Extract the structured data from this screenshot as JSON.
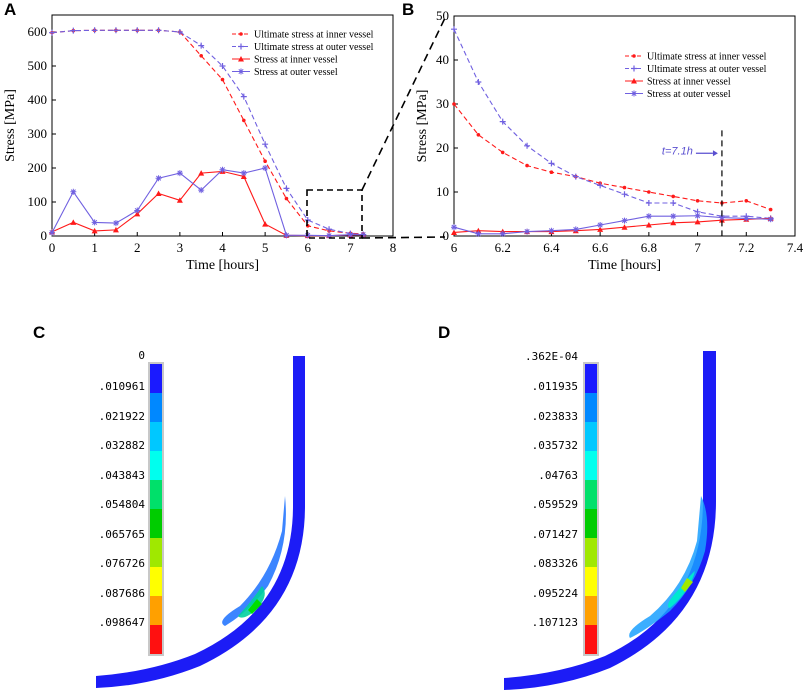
{
  "panels": {
    "a": "A",
    "b": "B",
    "c": "C",
    "d": "D"
  },
  "series_names": [
    "Ultimate stress at inner vessel",
    "Ultimate stress at outer vessel",
    "Stress at inner vessel",
    "Stress at outer vessel"
  ],
  "colors": {
    "inner": "#ff1a1a",
    "outer": "#7060e0",
    "dashed_box": "#000000"
  },
  "chart_data": [
    {
      "type": "line",
      "panel": "A",
      "xlabel": "Time [hours]",
      "ylabel": "Stress [MPa]",
      "xlim": [
        0,
        8
      ],
      "ylim": [
        0,
        650
      ],
      "xticks": [
        0,
        1,
        2,
        3,
        4,
        5,
        6,
        7,
        8
      ],
      "yticks": [
        0,
        100,
        200,
        300,
        400,
        500,
        600
      ],
      "legend": "top-right",
      "series": [
        {
          "name": "Ultimate stress at inner vessel",
          "color": "#ff1a1a",
          "style": "dashed",
          "marker": "dot",
          "x": [
            0,
            0.5,
            1,
            1.5,
            2,
            2.5,
            3,
            3.5,
            4,
            4.5,
            5,
            5.5,
            6,
            6.5,
            7,
            7.3
          ],
          "y": [
            598,
            604,
            605,
            605,
            605,
            605,
            600,
            530,
            460,
            340,
            220,
            110,
            30,
            15,
            8,
            6
          ]
        },
        {
          "name": "Ultimate stress at outer vessel",
          "color": "#7060e0",
          "style": "dashed",
          "marker": "plus",
          "x": [
            0,
            0.5,
            1,
            1.5,
            2,
            2.5,
            3,
            3.5,
            4,
            4.5,
            5,
            5.5,
            6,
            6.5,
            7,
            7.3
          ],
          "y": [
            598,
            604,
            605,
            605,
            605,
            605,
            600,
            560,
            500,
            410,
            270,
            140,
            47,
            20,
            7,
            4
          ]
        },
        {
          "name": "Stress at inner vessel",
          "color": "#ff1a1a",
          "style": "solid",
          "marker": "triangle",
          "x": [
            0,
            0.5,
            1,
            1.5,
            2,
            2.5,
            3,
            3.5,
            4,
            4.5,
            5,
            5.5,
            6,
            6.5,
            7,
            7.3
          ],
          "y": [
            12,
            40,
            15,
            18,
            65,
            125,
            105,
            185,
            190,
            175,
            35,
            2,
            1,
            1,
            3,
            4
          ]
        },
        {
          "name": "Stress at outer vessel",
          "color": "#7060e0",
          "style": "solid",
          "marker": "star",
          "x": [
            0,
            0.5,
            1,
            1.5,
            2,
            2.5,
            3,
            3.5,
            4,
            4.5,
            5,
            5.5,
            6,
            6.5,
            7,
            7.3
          ],
          "y": [
            10,
            130,
            40,
            38,
            75,
            170,
            185,
            135,
            195,
            185,
            200,
            2,
            2,
            1,
            4,
            4
          ]
        }
      ]
    },
    {
      "type": "line",
      "panel": "B",
      "xlabel": "Time [hours]",
      "ylabel": "Stress [MPa]",
      "xlim": [
        6,
        7.4
      ],
      "ylim": [
        0,
        50
      ],
      "xticks": [
        6,
        6.2,
        6.4,
        6.6,
        6.8,
        7,
        7.2,
        7.4
      ],
      "yticks": [
        0,
        10,
        20,
        30,
        40,
        50
      ],
      "legend": "top-right",
      "annotation": "t=7.1h",
      "annotation_x": 7.1,
      "series": [
        {
          "name": "Ultimate stress at inner vessel",
          "color": "#ff1a1a",
          "style": "dashed",
          "marker": "dot",
          "x": [
            6,
            6.1,
            6.2,
            6.3,
            6.4,
            6.5,
            6.6,
            6.7,
            6.8,
            6.9,
            7,
            7.1,
            7.2,
            7.3
          ],
          "y": [
            30,
            23,
            19,
            16,
            14.5,
            13.5,
            12,
            11,
            10,
            9,
            8,
            7.5,
            8,
            6
          ]
        },
        {
          "name": "Ultimate stress at outer vessel",
          "color": "#7060e0",
          "style": "dashed",
          "marker": "plus",
          "x": [
            6,
            6.1,
            6.2,
            6.3,
            6.4,
            6.5,
            6.6,
            6.7,
            6.8,
            6.9,
            7,
            7.1,
            7.2,
            7.3
          ],
          "y": [
            47,
            35,
            26,
            20.5,
            16.5,
            13.5,
            11.5,
            9.5,
            7.5,
            7.5,
            5.5,
            4.5,
            4.5,
            4
          ]
        },
        {
          "name": "Stress at inner vessel",
          "color": "#ff1a1a",
          "style": "solid",
          "marker": "triangle",
          "x": [
            6,
            6.1,
            6.2,
            6.3,
            6.4,
            6.5,
            6.6,
            6.7,
            6.8,
            6.9,
            7,
            7.1,
            7.2,
            7.3
          ],
          "y": [
            0.8,
            1.2,
            1,
            1,
            1,
            1.2,
            1.5,
            2,
            2.5,
            3,
            3.2,
            3.6,
            3.8,
            4
          ]
        },
        {
          "name": "Stress at outer vessel",
          "color": "#7060e0",
          "style": "solid",
          "marker": "star",
          "x": [
            6,
            6.1,
            6.2,
            6.3,
            6.4,
            6.5,
            6.6,
            6.7,
            6.8,
            6.9,
            7,
            7.1,
            7.2,
            7.3
          ],
          "y": [
            2,
            0.5,
            0.5,
            1,
            1.2,
            1.5,
            2.5,
            3.5,
            4.5,
            4.5,
            4.6,
            4.2,
            4,
            3.8
          ]
        }
      ]
    }
  ],
  "colorbar_c": {
    "labels": [
      "0",
      ".010961",
      ".021922",
      ".032882",
      ".043843",
      ".054804",
      ".065765",
      ".076726",
      ".087686",
      ".098647"
    ],
    "colors": [
      "#1a1aff",
      "#0088ff",
      "#00c8ff",
      "#00ffee",
      "#00e06a",
      "#00cc00",
      "#a0e800",
      "#ffff00",
      "#ffa000",
      "#ff1010"
    ]
  },
  "colorbar_d": {
    "labels": [
      ".362E-04",
      ".011935",
      ".023833",
      ".035732",
      ".04763",
      ".059529",
      ".071427",
      ".083326",
      ".095224",
      ".107123"
    ],
    "colors": [
      "#1a1aff",
      "#0088ff",
      "#00c8ff",
      "#00ffee",
      "#00e06a",
      "#00cc00",
      "#a0e800",
      "#ffff00",
      "#ffa000",
      "#ff1010"
    ]
  }
}
